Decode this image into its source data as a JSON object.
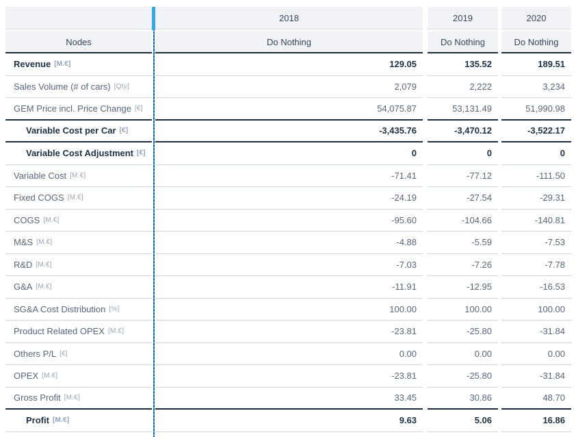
{
  "colors": {
    "accent_blue": "#36a9e1",
    "emphasis_text": "#1d3144",
    "regular_text": "#56677a",
    "unit_text": "#96a6b7",
    "header_background": "#f1f3f6",
    "dark_border": "#1b2a39",
    "light_border": "#ccd4dc"
  },
  "header": {
    "nodes_label": "Nodes",
    "years": [
      "2018",
      "2019",
      "2020"
    ],
    "scenarios": [
      "Do Nothing",
      "Do Nothing",
      "Do Nothing"
    ]
  },
  "rows": [
    {
      "label": "Revenue",
      "unit": "[M.€]",
      "emphasis": true,
      "indent": false,
      "values": [
        "129.05",
        "135.52",
        "189.51"
      ]
    },
    {
      "label": "Sales Volume (# of cars)",
      "unit": "[Qty]",
      "emphasis": false,
      "indent": false,
      "values": [
        "2,079",
        "2,222",
        "3,234"
      ]
    },
    {
      "label": "GEM Price incl. Price Change",
      "unit": "[€]",
      "emphasis": false,
      "indent": false,
      "values": [
        "54,075.87",
        "53,131.49",
        "51,990.98"
      ]
    },
    {
      "label": "Variable Cost per Car",
      "unit": "[€]",
      "emphasis": true,
      "indent": true,
      "values": [
        "-3,435.76",
        "-3,470.12",
        "-3,522.17"
      ]
    },
    {
      "label": "Variable Cost Adjustment",
      "unit": "[€]",
      "emphasis": true,
      "indent": true,
      "values": [
        "0",
        "0",
        "0"
      ]
    },
    {
      "label": "Variable Cost",
      "unit": "[M.€]",
      "emphasis": false,
      "indent": false,
      "values": [
        "-71.41",
        "-77.12",
        "-111.50"
      ]
    },
    {
      "label": "Fixed COGS",
      "unit": "[M.€]",
      "emphasis": false,
      "indent": false,
      "values": [
        "-24.19",
        "-27.54",
        "-29.31"
      ]
    },
    {
      "label": "COGS",
      "unit": "[M.€]",
      "emphasis": false,
      "indent": false,
      "values": [
        "-95.60",
        "-104.66",
        "-140.81"
      ]
    },
    {
      "label": "M&S",
      "unit": "[M.€]",
      "emphasis": false,
      "indent": false,
      "values": [
        "-4.88",
        "-5.59",
        "-7.53"
      ]
    },
    {
      "label": "R&D",
      "unit": "[M.€]",
      "emphasis": false,
      "indent": false,
      "values": [
        "-7.03",
        "-7.26",
        "-7.78"
      ]
    },
    {
      "label": "G&A",
      "unit": "[M.€]",
      "emphasis": false,
      "indent": false,
      "values": [
        "-11.91",
        "-12.95",
        "-16.53"
      ]
    },
    {
      "label": "SG&A Cost Distribution",
      "unit": "[%]",
      "emphasis": false,
      "indent": false,
      "values": [
        "100.00",
        "100.00",
        "100.00"
      ]
    },
    {
      "label": "Product Related OPEX",
      "unit": "[M.€]",
      "emphasis": false,
      "indent": false,
      "values": [
        "-23.81",
        "-25.80",
        "-31.84"
      ]
    },
    {
      "label": "Others P/L",
      "unit": "[€]",
      "emphasis": false,
      "indent": false,
      "values": [
        "0.00",
        "0.00",
        "0.00"
      ]
    },
    {
      "label": "OPEX",
      "unit": "[M.€]",
      "emphasis": false,
      "indent": false,
      "values": [
        "-23.81",
        "-25.80",
        "-31.84"
      ]
    },
    {
      "label": "Gross Profit",
      "unit": "[M.€]",
      "emphasis": false,
      "indent": false,
      "values": [
        "33.45",
        "30.86",
        "48.70"
      ]
    },
    {
      "label": "Profit",
      "unit": "[M.€]",
      "emphasis": true,
      "indent": true,
      "values": [
        "9.63",
        "5.06",
        "16.86"
      ]
    }
  ]
}
